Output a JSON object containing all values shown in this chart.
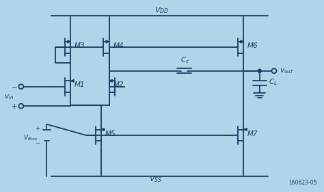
{
  "background_color": "#aed6e8",
  "line_color": "#1e3a5f",
  "text_color": "#1e3a5f",
  "figsize": [
    4.74,
    2.81
  ],
  "dpi": 100,
  "labels": {
    "VDD": "V_{DD}",
    "VSS": "V_{SS}",
    "vout": "v_{out}",
    "vin": "v_{in}",
    "VBias": "V_{Bias}",
    "Cc": "C_c",
    "CL": "C_L",
    "M1": "M1",
    "M2": "M2",
    "M3": "M3",
    "M4": "M4",
    "M5": "M5",
    "M6": "M6",
    "M7": "M7",
    "ref": "160623-05"
  }
}
